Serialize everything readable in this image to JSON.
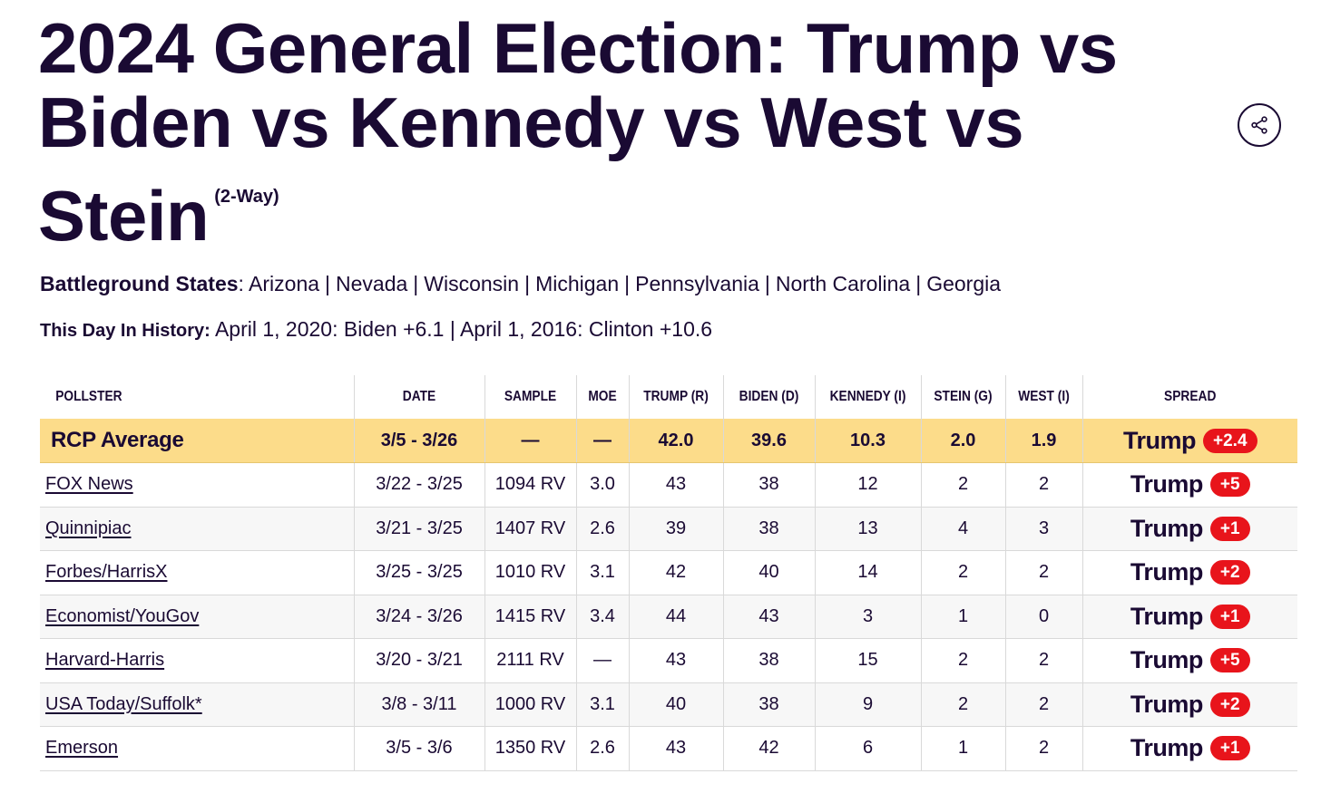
{
  "title": "2024 General Election: Trump vs Biden vs Kennedy vs West vs Stein",
  "title_tag": "(2-Way)",
  "battleground": {
    "label": "Battleground States",
    "states": [
      "Arizona",
      "Nevada",
      "Wisconsin",
      "Michigan",
      "Pennsylvania",
      "North Carolina",
      "Georgia"
    ]
  },
  "history": {
    "label": "This Day In History:",
    "text": "April 1, 2020: Biden +6.1 | April 1, 2016: Clinton +10.6"
  },
  "columns": [
    "POLLSTER",
    "DATE",
    "SAMPLE",
    "MOE",
    "TRUMP (R)",
    "BIDEN (D)",
    "KENNEDY (I)",
    "STEIN (G)",
    "WEST (I)",
    "SPREAD"
  ],
  "average": {
    "pollster": "RCP Average",
    "date": "3/5 - 3/26",
    "sample": "—",
    "moe": "—",
    "trump": "42.0",
    "biden": "39.6",
    "kennedy": "10.3",
    "stein": "2.0",
    "west": "1.9",
    "spread_candidate": "Trump",
    "spread_value": "+2.4"
  },
  "polls": [
    {
      "pollster": "FOX News",
      "date": "3/22 - 3/25",
      "sample": "1094 RV",
      "moe": "3.0",
      "trump": "43",
      "biden": "38",
      "kennedy": "12",
      "stein": "2",
      "west": "2",
      "spread_candidate": "Trump",
      "spread_value": "+5"
    },
    {
      "pollster": "Quinnipiac",
      "date": "3/21 - 3/25",
      "sample": "1407 RV",
      "moe": "2.6",
      "trump": "39",
      "biden": "38",
      "kennedy": "13",
      "stein": "4",
      "west": "3",
      "spread_candidate": "Trump",
      "spread_value": "+1"
    },
    {
      "pollster": "Forbes/HarrisX",
      "date": "3/25 - 3/25",
      "sample": "1010 RV",
      "moe": "3.1",
      "trump": "42",
      "biden": "40",
      "kennedy": "14",
      "stein": "2",
      "west": "2",
      "spread_candidate": "Trump",
      "spread_value": "+2"
    },
    {
      "pollster": "Economist/YouGov",
      "date": "3/24 - 3/26",
      "sample": "1415 RV",
      "moe": "3.4",
      "trump": "44",
      "biden": "43",
      "kennedy": "3",
      "stein": "1",
      "west": "0",
      "spread_candidate": "Trump",
      "spread_value": "+1"
    },
    {
      "pollster": "Harvard-Harris",
      "date": "3/20 - 3/21",
      "sample": "2111 RV",
      "moe": "—",
      "trump": "43",
      "biden": "38",
      "kennedy": "15",
      "stein": "2",
      "west": "2",
      "spread_candidate": "Trump",
      "spread_value": "+5"
    },
    {
      "pollster": "USA Today/Suffolk*",
      "date": "3/8 - 3/11",
      "sample": "1000 RV",
      "moe": "3.1",
      "trump": "40",
      "biden": "38",
      "kennedy": "9",
      "stein": "2",
      "west": "2",
      "spread_candidate": "Trump",
      "spread_value": "+2"
    },
    {
      "pollster": "Emerson",
      "date": "3/5 - 3/6",
      "sample": "1350 RV",
      "moe": "2.6",
      "trump": "43",
      "biden": "42",
      "kennedy": "6",
      "stein": "1",
      "west": "2",
      "spread_candidate": "Trump",
      "spread_value": "+1"
    }
  ],
  "icons": {
    "share": "share-icon"
  },
  "colors": {
    "text": "#1a0a33",
    "average_row": "#fcdc8a",
    "spread_pill": "#e8141b",
    "stripe": "#f7f7f7"
  }
}
